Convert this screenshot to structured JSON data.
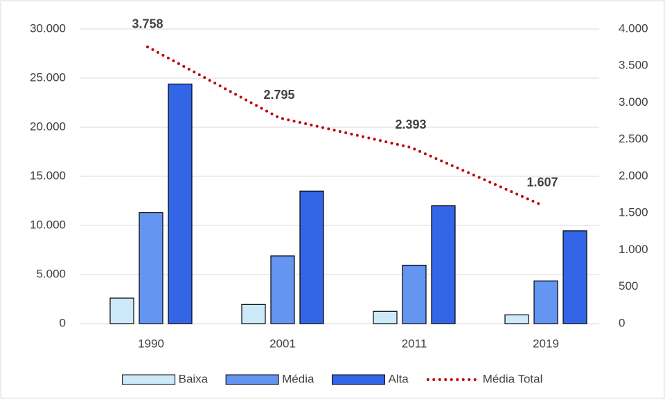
{
  "chart_data": {
    "type": "bar",
    "categories": [
      "1990",
      "2001",
      "2011",
      "2019"
    ],
    "series": [
      {
        "name": "Baixa",
        "color": "#cdeafa",
        "type": "bar",
        "values": [
          2600,
          1950,
          1250,
          900
        ]
      },
      {
        "name": "Média",
        "color": "#6495f0",
        "type": "bar",
        "values": [
          11300,
          6900,
          5950,
          4350
        ]
      },
      {
        "name": "Alta",
        "color": "#3366e6",
        "type": "bar",
        "values": [
          24400,
          13500,
          12000,
          9450
        ]
      },
      {
        "name": "Média Total",
        "color": "#c00000",
        "type": "line",
        "axis": "y2",
        "style": "dotted",
        "values": [
          3758,
          2795,
          2393,
          1607
        ],
        "value_labels": [
          "3.758",
          "2.795",
          "2.393",
          "1.607"
        ]
      }
    ],
    "ylim": [
      0,
      30000
    ],
    "yticks": [
      0,
      {
        "value": 5000,
        "label": "5.000"
      },
      {
        "value": 10000,
        "label": "10.000"
      },
      {
        "value": 15000,
        "label": "15.000"
      },
      {
        "value": 20000,
        "label": "20.000"
      },
      {
        "value": 25000,
        "label": "25.000"
      },
      {
        "value": 30000,
        "label": "30.000"
      }
    ],
    "y2lim": [
      0,
      4000
    ],
    "y2ticks": [
      0,
      500,
      {
        "value": 1000,
        "label": "1.000"
      },
      {
        "value": 1500,
        "label": "1.500"
      },
      {
        "value": 2000,
        "label": "2.000"
      },
      {
        "value": 2500,
        "label": "2.500"
      },
      {
        "value": 3000,
        "label": "3.000"
      },
      {
        "value": 3500,
        "label": "3.500"
      },
      {
        "value": 4000,
        "label": "4.000"
      }
    ],
    "grid": true,
    "legend": "bottom"
  }
}
